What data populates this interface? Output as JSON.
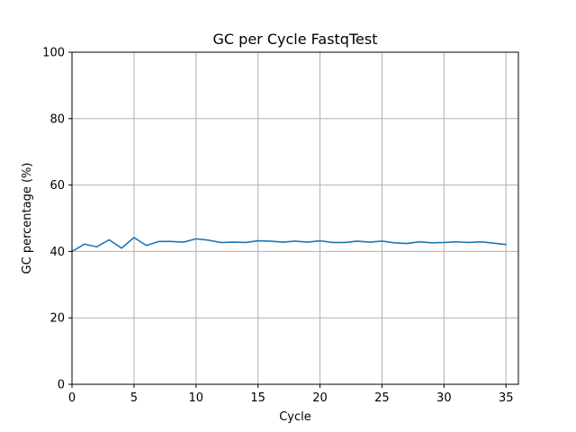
{
  "chart_data": {
    "type": "line",
    "title": "GC per Cycle FastqTest",
    "xlabel": "Cycle",
    "ylabel": "GC percentage (%)",
    "xlim": [
      0,
      36
    ],
    "ylim": [
      0,
      100
    ],
    "xticks": [
      0,
      5,
      10,
      15,
      20,
      25,
      30,
      35
    ],
    "yticks": [
      0,
      20,
      40,
      60,
      80,
      100
    ],
    "grid": true,
    "series": [
      {
        "color": "#1f77b4",
        "x": [
          0,
          1,
          2,
          3,
          4,
          5,
          6,
          7,
          8,
          9,
          10,
          11,
          12,
          13,
          14,
          15,
          16,
          17,
          18,
          19,
          20,
          21,
          22,
          23,
          24,
          25,
          26,
          27,
          28,
          29,
          30,
          31,
          32,
          33,
          34,
          35
        ],
        "values": [
          40.0,
          42.2,
          41.4,
          43.5,
          41.0,
          44.2,
          41.8,
          43.0,
          43.0,
          42.8,
          43.8,
          43.4,
          42.7,
          42.8,
          42.7,
          43.2,
          43.1,
          42.8,
          43.1,
          42.8,
          43.2,
          42.7,
          42.7,
          43.1,
          42.8,
          43.1,
          42.6,
          42.4,
          42.9,
          42.6,
          42.7,
          42.9,
          42.7,
          42.9,
          42.5,
          42.1
        ]
      }
    ]
  }
}
